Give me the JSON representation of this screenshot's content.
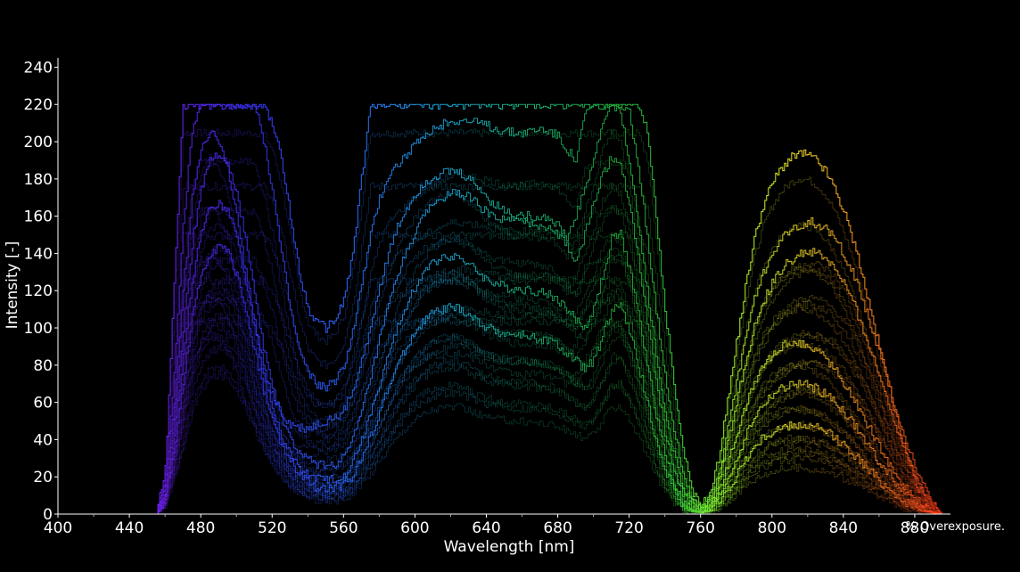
{
  "chart_data": {
    "type": "line",
    "title": "",
    "xlabel": "Wavelength [nm]",
    "ylabel": "Intensity [-]",
    "xlim": [
      400,
      900
    ],
    "ylim": [
      0,
      245
    ],
    "x_ticks": [
      400,
      440,
      480,
      520,
      560,
      600,
      640,
      680,
      720,
      760,
      800,
      840,
      880
    ],
    "x_tick_labels": [
      "400",
      "440",
      "480",
      "520",
      "560",
      "600",
      "640",
      "680",
      "720",
      "760",
      "800",
      "840",
      "880"
    ],
    "y_ticks": [
      0,
      20,
      40,
      60,
      80,
      100,
      120,
      140,
      160,
      180,
      200,
      220,
      240
    ],
    "y_tick_labels": [
      "0",
      "20",
      "40",
      "60",
      "80",
      "100",
      "120",
      "140",
      "160",
      "180",
      "200",
      "220",
      "240"
    ],
    "saturation_level": 220,
    "annotation": "% Overexposure.",
    "grid": false,
    "legend": "none",
    "x": [
      455,
      460,
      465,
      470,
      475,
      480,
      485,
      490,
      495,
      500,
      505,
      510,
      515,
      520,
      525,
      530,
      535,
      540,
      545,
      550,
      555,
      560,
      565,
      570,
      575,
      580,
      585,
      590,
      595,
      600,
      605,
      610,
      615,
      620,
      625,
      630,
      635,
      640,
      645,
      650,
      655,
      660,
      665,
      670,
      675,
      680,
      685,
      690,
      695,
      700,
      705,
      710,
      715,
      720,
      725,
      730,
      735,
      740,
      745,
      750,
      755,
      760,
      765,
      770,
      775,
      780,
      785,
      790,
      795,
      800,
      805,
      810,
      815,
      820,
      825,
      830,
      835,
      840,
      845,
      850,
      855,
      860,
      865,
      870,
      875,
      880,
      885,
      890,
      895,
      900
    ],
    "series": [
      {
        "values": [
          0,
          25,
          122,
          220,
          220,
          220,
          220,
          220,
          220,
          220,
          220,
          220,
          220,
          210,
          190,
          160,
          130,
          110,
          103,
          100,
          104,
          115,
          140,
          180,
          220,
          220,
          220,
          220,
          220,
          220,
          220,
          220,
          220,
          220,
          220,
          220,
          220,
          220,
          220,
          220,
          220,
          220,
          220,
          220,
          220,
          220,
          220,
          220,
          220,
          220,
          220,
          220,
          220,
          220,
          220,
          205,
          160,
          110,
          70,
          35,
          12,
          5,
          10,
          30,
          60,
          92,
          122,
          148,
          166,
          178,
          186,
          191,
          194,
          193,
          190,
          184,
          175,
          163,
          148,
          130,
          110,
          90,
          70,
          50,
          32,
          18,
          8,
          0,
          0,
          0
        ]
      },
      {
        "values": [
          0,
          20,
          75,
          155,
          205,
          220,
          220,
          220,
          220,
          220,
          220,
          220,
          200,
          175,
          140,
          110,
          88,
          76,
          70,
          68,
          71,
          80,
          98,
          124,
          150,
          170,
          182,
          188,
          193,
          198,
          202,
          206,
          209,
          211,
          212,
          211,
          210,
          209,
          207,
          206,
          205,
          205,
          206,
          207,
          206,
          203,
          196,
          190,
          215,
          220,
          220,
          220,
          220,
          215,
          185,
          150,
          110,
          75,
          45,
          22,
          9,
          4,
          8,
          22,
          45,
          70,
          95,
          115,
          130,
          140,
          147,
          152,
          155,
          157,
          156,
          153,
          148,
          140,
          130,
          117,
          102,
          86,
          70,
          54,
          39,
          26,
          14,
          5,
          0,
          0
        ]
      },
      {
        "values": [
          0,
          15,
          60,
          120,
          170,
          198,
          206,
          200,
          185,
          160,
          130,
          102,
          80,
          64,
          54,
          48,
          46,
          46,
          48,
          50,
          52,
          56,
          66,
          82,
          102,
          122,
          140,
          154,
          164,
          172,
          178,
          181,
          183,
          184,
          183,
          180,
          176,
          170,
          166,
          163,
          161,
          160,
          160,
          160,
          159,
          155,
          148,
          160,
          175,
          190,
          210,
          220,
          215,
          190,
          155,
          120,
          85,
          55,
          32,
          15,
          6,
          3,
          6,
          18,
          38,
          60,
          82,
          100,
          114,
          124,
          131,
          136,
          139,
          141,
          140,
          137,
          132,
          124,
          114,
          102,
          88,
          74,
          60,
          46,
          33,
          22,
          12,
          5,
          0,
          0
        ]
      },
      {
        "values": [
          0,
          12,
          50,
          100,
          145,
          175,
          190,
          194,
          188,
          172,
          148,
          118,
          90,
          68,
          52,
          40,
          33,
          29,
          27,
          26,
          27,
          30,
          40,
          55,
          74,
          94,
          112,
          128,
          141,
          152,
          160,
          166,
          170,
          172,
          172,
          170,
          166,
          162,
          159,
          158,
          157,
          157,
          156,
          155,
          154,
          150,
          144,
          135,
          150,
          168,
          182,
          192,
          188,
          168,
          138,
          104,
          72,
          44,
          24,
          10,
          4,
          2,
          4,
          12,
          26,
          42,
          58,
          70,
          80,
          86,
          90,
          92,
          92,
          91,
          88,
          84,
          78,
          71,
          63,
          54,
          45,
          36,
          28,
          20,
          13,
          8,
          4,
          1,
          0,
          0
        ]
      },
      {
        "values": [
          0,
          10,
          42,
          85,
          125,
          152,
          165,
          168,
          162,
          148,
          126,
          100,
          76,
          56,
          42,
          32,
          25,
          21,
          19,
          18,
          19,
          21,
          28,
          40,
          54,
          70,
          86,
          100,
          112,
          122,
          130,
          135,
          138,
          139,
          138,
          134,
          130,
          126,
          124,
          122,
          121,
          121,
          120,
          119,
          118,
          115,
          110,
          104,
          100,
          110,
          128,
          148,
          150,
          132,
          108,
          80,
          54,
          32,
          16,
          6,
          2,
          1,
          3,
          9,
          19,
          30,
          42,
          52,
          59,
          64,
          67,
          69,
          70,
          69,
          67,
          64,
          60,
          55,
          49,
          42,
          35,
          28,
          22,
          16,
          10,
          6,
          3,
          1,
          0,
          0
        ]
      },
      {
        "values": [
          0,
          8,
          34,
          70,
          105,
          128,
          140,
          144,
          140,
          128,
          110,
          88,
          67,
          50,
          37,
          28,
          21,
          17,
          14,
          13,
          14,
          16,
          21,
          30,
          42,
          55,
          68,
          80,
          90,
          98,
          104,
          108,
          110,
          111,
          110,
          107,
          103,
          100,
          98,
          97,
          96,
          96,
          95,
          94,
          93,
          90,
          86,
          82,
          78,
          82,
          96,
          110,
          112,
          98,
          80,
          60,
          40,
          24,
          12,
          5,
          2,
          1,
          2,
          6,
          13,
          21,
          29,
          36,
          41,
          44,
          46,
          47,
          48,
          47,
          46,
          44,
          41,
          37,
          33,
          28,
          23,
          18,
          14,
          10,
          6,
          4,
          2,
          1,
          0,
          0
        ]
      }
    ]
  }
}
